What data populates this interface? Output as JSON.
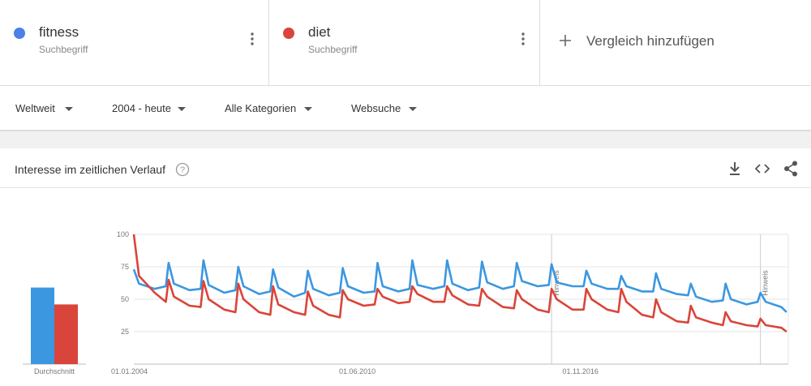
{
  "header": {
    "terms": [
      {
        "name": "fitness",
        "sub": "Suchbegriff",
        "color": "#4a80e8"
      },
      {
        "name": "diet",
        "sub": "Suchbegriff",
        "color": "#d9453a"
      }
    ],
    "add": "Vergleich hinzufügen"
  },
  "filters": [
    "Weltweit",
    "2004 - heute",
    "Alle Kategorien",
    "Websuche"
  ],
  "section_title": "Interesse im zeitlichen Verlauf",
  "chart_data": {
    "type": "line",
    "average_label": "Durchschnitt",
    "x": [
      2004.0,
      2004.15,
      2004.6,
      2004.92,
      2005.0,
      2005.15,
      2005.6,
      2005.92,
      2006.0,
      2006.15,
      2006.6,
      2006.92,
      2007.0,
      2007.15,
      2007.6,
      2007.92,
      2008.0,
      2008.15,
      2008.6,
      2008.92,
      2009.0,
      2009.15,
      2009.6,
      2009.92,
      2010.0,
      2010.15,
      2010.6,
      2010.92,
      2011.0,
      2011.15,
      2011.6,
      2011.92,
      2012.0,
      2012.15,
      2012.6,
      2012.92,
      2013.0,
      2013.15,
      2013.6,
      2013.92,
      2014.0,
      2014.15,
      2014.6,
      2014.92,
      2015.0,
      2015.15,
      2015.6,
      2015.92,
      2016.0,
      2016.15,
      2016.6,
      2016.92,
      2017.0,
      2017.15,
      2017.6,
      2017.92,
      2018.0,
      2018.15,
      2018.6,
      2018.92,
      2019.0,
      2019.15,
      2019.6,
      2019.92,
      2020.0,
      2020.15,
      2020.6,
      2020.92,
      2021.0,
      2021.15,
      2021.6,
      2021.92,
      2022.0,
      2022.15,
      2022.6,
      2022.75
    ],
    "series": [
      {
        "name": "fitness",
        "color": "#3b97e0",
        "average": 59,
        "values": [
          73,
          62,
          58,
          60,
          78,
          62,
          57,
          58,
          80,
          61,
          55,
          57,
          75,
          60,
          54,
          56,
          73,
          59,
          52,
          55,
          72,
          58,
          53,
          55,
          74,
          60,
          55,
          56,
          78,
          60,
          56,
          58,
          80,
          61,
          58,
          60,
          80,
          62,
          57,
          59,
          79,
          63,
          58,
          60,
          78,
          64,
          60,
          61,
          77,
          63,
          60,
          60,
          72,
          62,
          58,
          58,
          68,
          60,
          56,
          56,
          70,
          58,
          54,
          53,
          62,
          52,
          48,
          49,
          62,
          50,
          46,
          48,
          55,
          48,
          44,
          40
        ]
      },
      {
        "name": "diet",
        "color": "#d9453a",
        "average": 46,
        "values": [
          100,
          68,
          55,
          48,
          65,
          52,
          45,
          44,
          64,
          50,
          42,
          40,
          62,
          50,
          40,
          38,
          60,
          46,
          40,
          38,
          56,
          45,
          38,
          36,
          57,
          50,
          45,
          46,
          58,
          52,
          47,
          48,
          60,
          54,
          48,
          48,
          60,
          53,
          46,
          45,
          58,
          52,
          44,
          43,
          57,
          50,
          42,
          40,
          58,
          50,
          42,
          42,
          58,
          50,
          42,
          40,
          58,
          48,
          38,
          36,
          50,
          40,
          33,
          32,
          45,
          36,
          32,
          30,
          40,
          33,
          30,
          29,
          35,
          30,
          28,
          25
        ]
      }
    ],
    "xlim": [
      2004.0,
      2022.8
    ],
    "xticks": [
      {
        "value": 2004.0,
        "label": "01.01.2004"
      },
      {
        "value": 2010.42,
        "label": "01.06.2010"
      },
      {
        "value": 2016.83,
        "label": "01.11.2016"
      }
    ],
    "ylim": [
      0,
      100
    ],
    "yticks": [
      25,
      50,
      75,
      100
    ],
    "grid": true,
    "annotations": [
      {
        "x": 2016.0,
        "label": "Hinweis"
      },
      {
        "x": 2022.0,
        "label": "Hinweis"
      }
    ]
  }
}
